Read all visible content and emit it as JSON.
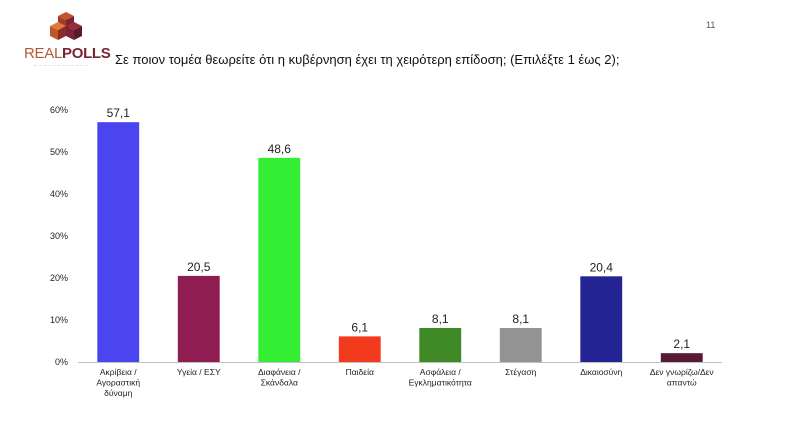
{
  "header": {
    "logo_real": "REAL",
    "logo_polls": "POLLS",
    "page_number": "11",
    "question": "Σε ποιον τομέα θεωρείτε ότι η κυβέρνηση έχει τη χειρότερη επίδοση; (Επιλέξτε 1 έως 2);"
  },
  "chart_data": {
    "type": "bar",
    "categories": [
      [
        "Ακρίβεια /",
        "Αγοραστική",
        "δύναμη"
      ],
      [
        "Υγεία / ΕΣΥ"
      ],
      [
        "Διαφάνεια /",
        "Σκάνδαλα"
      ],
      [
        "Παιδεία"
      ],
      [
        "Ασφάλεια /",
        "Εγκληματικότητα"
      ],
      [
        "Στέγαση"
      ],
      [
        "Δικαιοσύνη"
      ],
      [
        "Δεν γνωρίζω/Δεν",
        "απαντώ"
      ]
    ],
    "values": [
      57.1,
      20.5,
      48.6,
      6.1,
      8.1,
      8.1,
      20.4,
      2.1
    ],
    "value_labels": [
      "57,1",
      "20,5",
      "48,6",
      "6,1",
      "8,1",
      "8,1",
      "20,4",
      "2,1"
    ],
    "colors": [
      "#4b45f0",
      "#8f1d52",
      "#33ee33",
      "#f23a1c",
      "#3f8a26",
      "#939393",
      "#232394",
      "#581a34"
    ],
    "yticks": [
      "0%",
      "10%",
      "20%",
      "30%",
      "40%",
      "50%",
      "60%"
    ],
    "ylim": [
      0,
      60
    ],
    "grid": false,
    "legend": "none"
  }
}
